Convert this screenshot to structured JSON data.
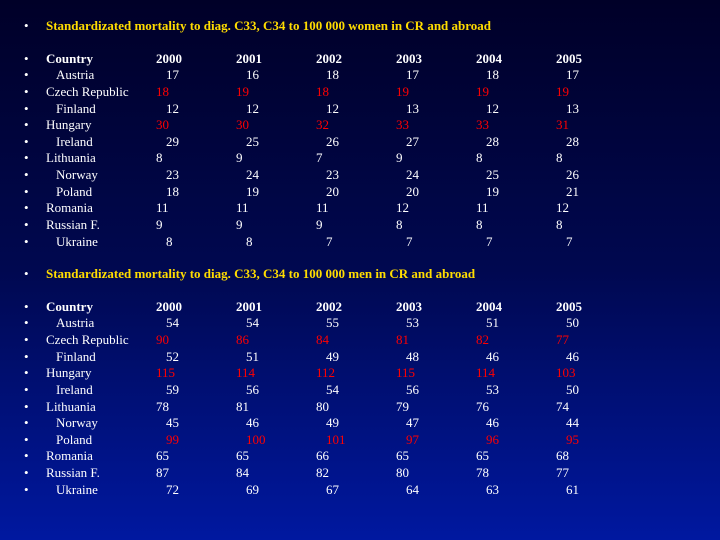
{
  "sections": [
    {
      "title": "Standardizated mortality  to  diag. C33, C34 to 100 000 women  in CR and abroad",
      "columns": [
        "Country",
        "2000",
        "2001",
        "2002",
        "2003",
        "2004",
        "2005"
      ],
      "rows": [
        {
          "label": "Austria",
          "indent": true,
          "vals": [
            "17",
            "16",
            "18",
            "17",
            "18",
            "17"
          ],
          "red": []
        },
        {
          "label": "Czech Republic",
          "indent": false,
          "vals": [
            "18",
            "19",
            "18",
            "19",
            "19",
            "19"
          ],
          "red": [
            0,
            1,
            2,
            3,
            4,
            5
          ]
        },
        {
          "label": "Finland",
          "indent": true,
          "vals": [
            "12",
            "12",
            "12",
            "13",
            "12",
            "13"
          ],
          "red": []
        },
        {
          "label": "Hungary",
          "indent": false,
          "vals": [
            "30",
            "30",
            "32",
            "33",
            "33",
            "31"
          ],
          "red": [
            0,
            1,
            2,
            3,
            4,
            5
          ]
        },
        {
          "label": "Ireland",
          "indent": true,
          "vals": [
            "29",
            "25",
            "26",
            "27",
            "28",
            "28"
          ],
          "red": []
        },
        {
          "label": "Lithuania",
          "indent": false,
          "vals": [
            "8",
            "9",
            "7",
            "9",
            "8",
            "8"
          ],
          "red": []
        },
        {
          "label": "Norway",
          "indent": true,
          "vals": [
            "23",
            "24",
            "23",
            "24",
            "25",
            "26"
          ],
          "red": []
        },
        {
          "label": "Poland",
          "indent": true,
          "vals": [
            "18",
            "19",
            "20",
            "20",
            "19",
            "21"
          ],
          "red": []
        },
        {
          "label": "Romania",
          "indent": false,
          "vals": [
            "11",
            "11",
            "11",
            "12",
            "11",
            "12"
          ],
          "red": []
        },
        {
          "label": "Russian F.",
          "indent": false,
          "vals": [
            "9",
            "9",
            "9",
            "8",
            "8",
            "8"
          ],
          "red": []
        },
        {
          "label": "Ukraine",
          "indent": true,
          "vals": [
            "8",
            "8",
            "7",
            "7",
            "7",
            "7"
          ],
          "red": []
        }
      ]
    },
    {
      "title": "Standardizated mortality  to  diag. C33, C34 to 100 000 men in  CR and  abroad",
      "columns": [
        "Country",
        "2000",
        "2001",
        "2002",
        "2003",
        "2004",
        "2005"
      ],
      "rows": [
        {
          "label": "Austria",
          "indent": true,
          "vals": [
            "54",
            "54",
            "55",
            "53",
            "51",
            "50"
          ],
          "red": []
        },
        {
          "label": "Czech Republic",
          "indent": false,
          "vals": [
            "90",
            "86",
            "84",
            "81",
            "82",
            "77"
          ],
          "red": [
            0,
            1,
            2,
            3,
            4,
            5
          ]
        },
        {
          "label": "Finland",
          "indent": true,
          "vals": [
            "52",
            "51",
            "49",
            "48",
            "46",
            "46"
          ],
          "red": []
        },
        {
          "label": "Hungary",
          "indent": false,
          "vals": [
            "115",
            "114",
            "112",
            "115",
            "114",
            "103"
          ],
          "red": [
            0,
            1,
            2,
            3,
            4,
            5
          ]
        },
        {
          "label": "Ireland",
          "indent": true,
          "vals": [
            "59",
            "56",
            "54",
            "56",
            "53",
            "50"
          ],
          "red": []
        },
        {
          "label": "Lithuania",
          "indent": false,
          "vals": [
            "78",
            "81",
            "80",
            "79",
            "76",
            "74"
          ],
          "red": []
        },
        {
          "label": "Norway",
          "indent": true,
          "vals": [
            "45",
            "46",
            "49",
            "47",
            "46",
            "44"
          ],
          "red": []
        },
        {
          "label": "Poland",
          "indent": true,
          "vals": [
            "99",
            "100",
            "101",
            "97",
            "96",
            "95"
          ],
          "red": [
            0,
            1,
            2,
            3,
            4,
            5
          ]
        },
        {
          "label": "Romania",
          "indent": false,
          "vals": [
            "65",
            "65",
            "66",
            "65",
            "65",
            "68"
          ],
          "red": []
        },
        {
          "label": "Russian F.",
          "indent": false,
          "vals": [
            "87",
            "84",
            "82",
            "80",
            "78",
            "77"
          ],
          "red": []
        },
        {
          "label": "Ukraine",
          "indent": true,
          "vals": [
            "72",
            "69",
            "67",
            "64",
            "63",
            "61"
          ],
          "red": []
        }
      ]
    }
  ]
}
